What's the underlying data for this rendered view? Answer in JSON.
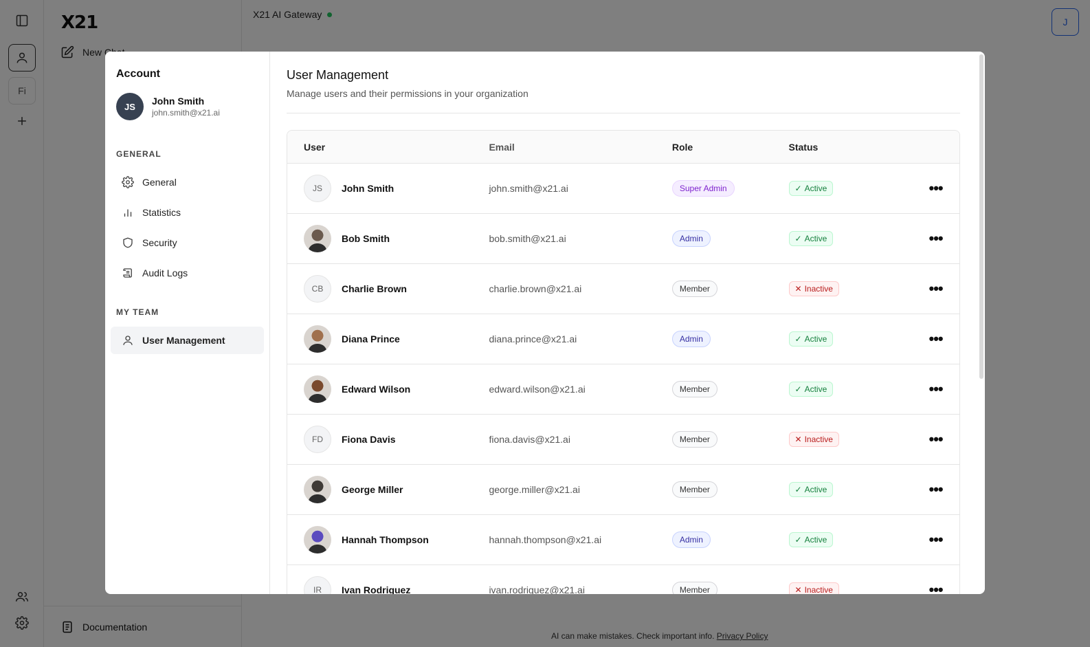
{
  "app": {
    "title": "X21 AI Gateway",
    "logo": "X21",
    "new_chat": "New Chat",
    "rail_file_label": "Fi",
    "user_initial": "J",
    "documentation": "Documentation",
    "footer_note": "AI can make mistakes. Check important info.",
    "privacy_link": "Privacy Policy"
  },
  "modal": {
    "sidebar": {
      "title": "Account",
      "user": {
        "initials": "JS",
        "name": "John Smith",
        "email": "john.smith@x21.ai"
      },
      "general_label": "GENERAL",
      "general_items": [
        {
          "label": "General",
          "icon": "gear-icon"
        },
        {
          "label": "Statistics",
          "icon": "bar-chart-icon"
        },
        {
          "label": "Security",
          "icon": "shield-icon"
        },
        {
          "label": "Audit Logs",
          "icon": "scroll-icon"
        }
      ],
      "team_label": "MY TEAM",
      "team_items": [
        {
          "label": "User Management",
          "icon": "user-icon"
        }
      ]
    },
    "main": {
      "title": "User Management",
      "subtitle": "Manage users and their permissions in your organization",
      "columns": [
        "User",
        "Email",
        "Role",
        "Status"
      ],
      "rows": [
        {
          "initials": "JS",
          "name": "John Smith",
          "email": "john.smith@x21.ai",
          "role": "Super Admin",
          "status": "Active"
        },
        {
          "initials": "",
          "name": "Bob Smith",
          "email": "bob.smith@x21.ai",
          "role": "Admin",
          "status": "Active"
        },
        {
          "initials": "CB",
          "name": "Charlie Brown",
          "email": "charlie.brown@x21.ai",
          "role": "Member",
          "status": "Inactive"
        },
        {
          "initials": "",
          "name": "Diana Prince",
          "email": "diana.prince@x21.ai",
          "role": "Admin",
          "status": "Active"
        },
        {
          "initials": "",
          "name": "Edward Wilson",
          "email": "edward.wilson@x21.ai",
          "role": "Member",
          "status": "Active"
        },
        {
          "initials": "FD",
          "name": "Fiona Davis",
          "email": "fiona.davis@x21.ai",
          "role": "Member",
          "status": "Inactive"
        },
        {
          "initials": "",
          "name": "George Miller",
          "email": "george.miller@x21.ai",
          "role": "Member",
          "status": "Active"
        },
        {
          "initials": "",
          "name": "Hannah Thompson",
          "email": "hannah.thompson@x21.ai",
          "role": "Admin",
          "status": "Active"
        },
        {
          "initials": "IR",
          "name": "Ivan Rodriguez",
          "email": "ivan.rodriguez@x21.ai",
          "role": "Member",
          "status": "Inactive"
        }
      ]
    }
  },
  "colors": {
    "status_dot": "#22c55e",
    "accent": "#2563eb",
    "avatar_photo_tones": [
      "#6b5a4e",
      "#a0704d",
      "#7a4a2e",
      "#3f3a36",
      "#5b4bbf"
    ]
  }
}
